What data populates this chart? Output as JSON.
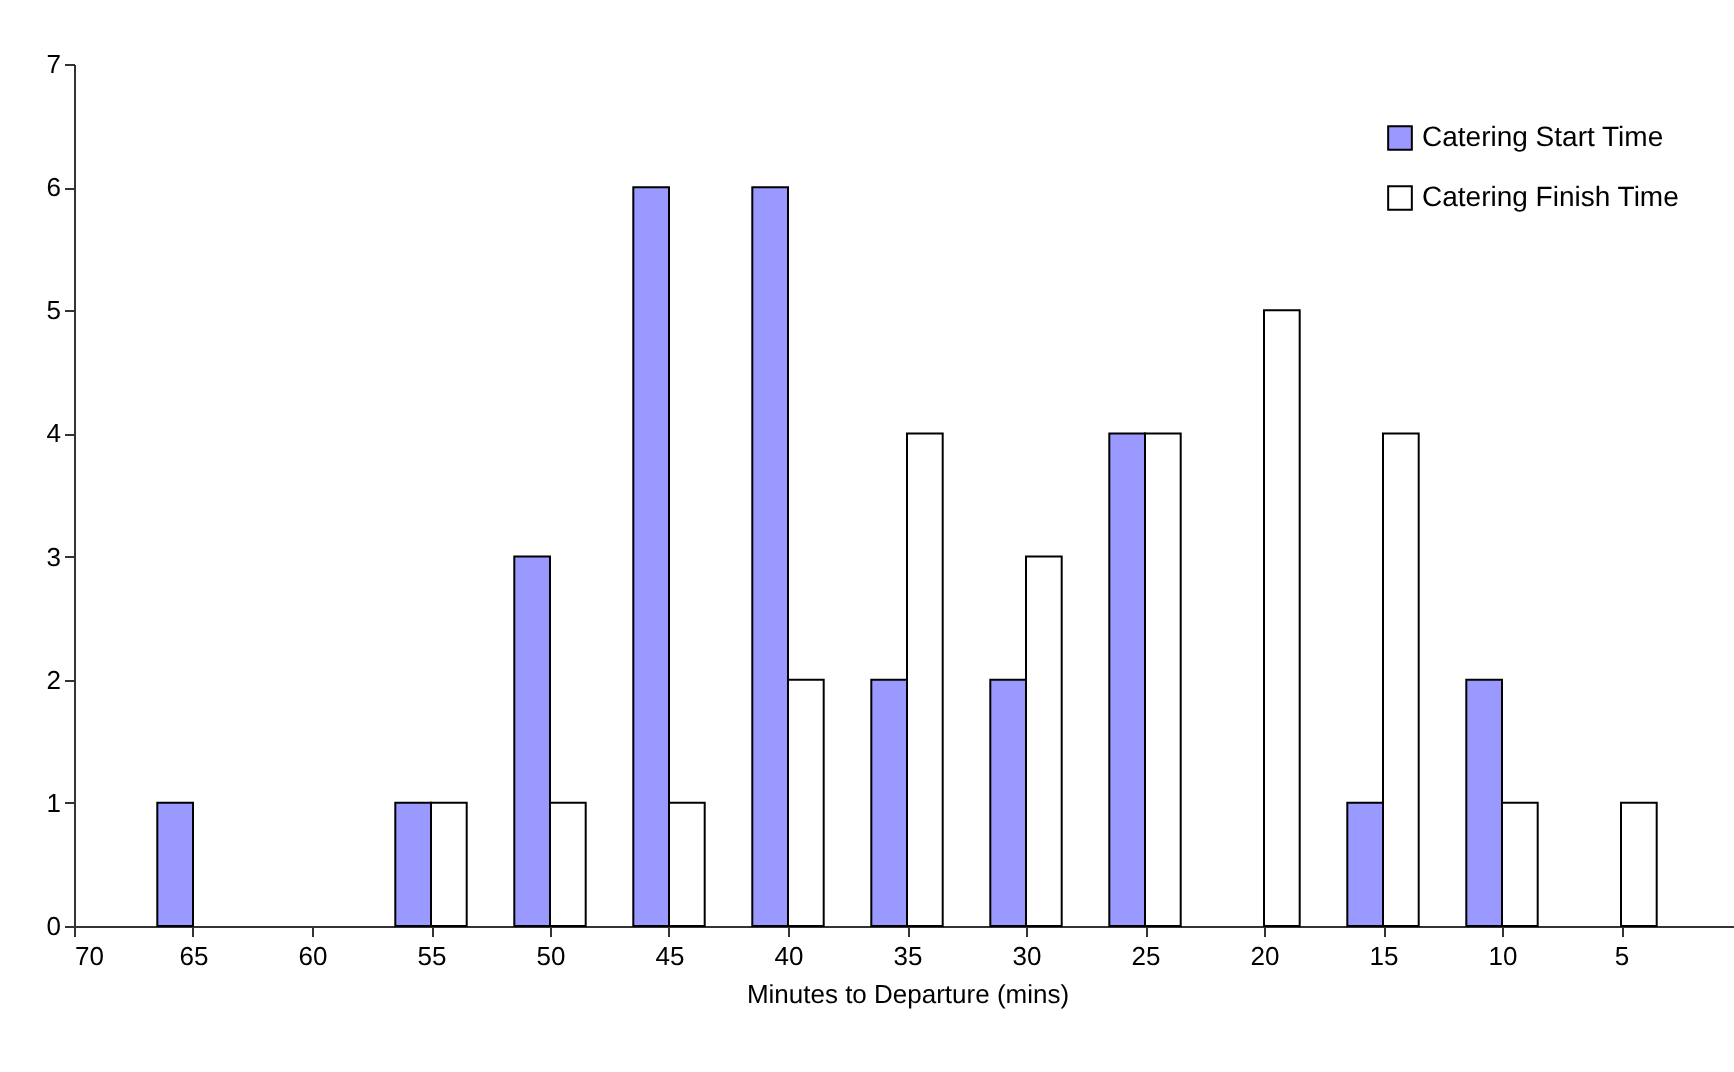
{
  "chart_data": {
    "type": "bar",
    "xlabel": "Minutes to Departure (mins)",
    "xlim": [
      70,
      0
    ],
    "xticks": [
      70,
      65,
      60,
      55,
      50,
      45,
      40,
      35,
      30,
      25,
      20,
      15,
      10,
      5,
      {
        "value": 0,
        "label": null
      }
    ],
    "ylim": [
      0,
      7
    ],
    "yticks": [
      0,
      1,
      2,
      3,
      4,
      5,
      6,
      7
    ],
    "grid": false,
    "legend": "top right",
    "series": [
      {
        "name": "Catering Start Time",
        "color": "#9999ff",
        "x": [
          65,
          55,
          50,
          45,
          40,
          35,
          30,
          25,
          15,
          10
        ],
        "values": [
          1,
          1,
          3,
          6,
          6,
          2,
          2,
          4,
          1,
          2
        ]
      },
      {
        "name": "Catering Finish Time",
        "color": "#ffffff",
        "x": [
          55,
          50,
          45,
          40,
          35,
          30,
          25,
          20,
          15,
          10,
          5
        ],
        "values": [
          1,
          1,
          1,
          2,
          4,
          3,
          4,
          5,
          4,
          1,
          1
        ]
      }
    ]
  }
}
